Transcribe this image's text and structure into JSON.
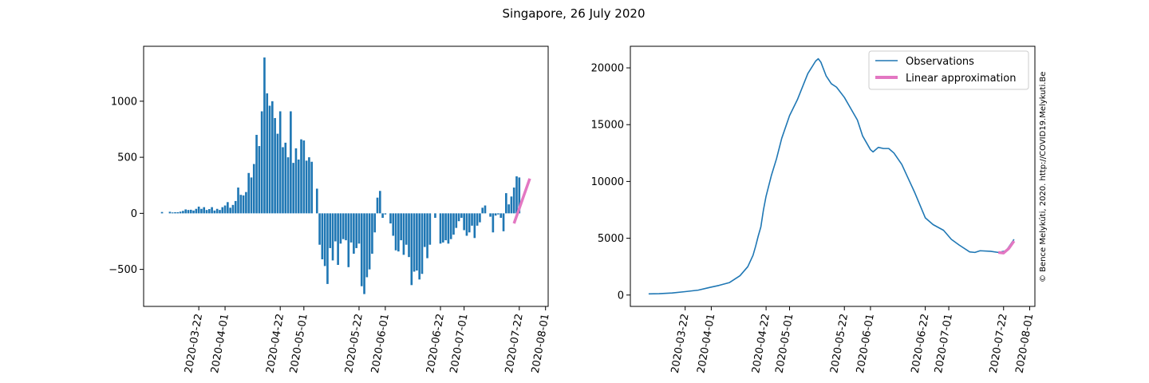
{
  "figure": {
    "title": "Singapore, 26 July 2020",
    "watermark": "© Bence Melykúti, 2020. http://COVID19.Melykuti.Be"
  },
  "colors": {
    "bar": "#1f77b4",
    "line": "#1f77b4",
    "approx": "#e377c2",
    "watermark": "#c8c8c8"
  },
  "chart_data": [
    {
      "type": "bar",
      "title": "",
      "xlabel": "",
      "ylabel": "",
      "xlim": [
        "2020-03-01",
        "2020-08-02"
      ],
      "ylim": [
        -830,
        1490
      ],
      "x_ticks": [
        "2020-03-22",
        "2020-04-01",
        "2020-04-22",
        "2020-05-01",
        "2020-05-22",
        "2020-06-01",
        "2020-06-22",
        "2020-07-01",
        "2020-07-22",
        "2020-08-01"
      ],
      "y_ticks": [
        -500,
        0,
        500,
        1000
      ],
      "y_tick_labels": [
        "−500",
        "0",
        "500",
        "1000"
      ],
      "grid": false,
      "start_date": "2020-03-08",
      "values": [
        12,
        0,
        0,
        14,
        8,
        10,
        10,
        15,
        22,
        35,
        30,
        32,
        25,
        40,
        60,
        40,
        55,
        30,
        38,
        55,
        25,
        40,
        30,
        55,
        70,
        100,
        50,
        75,
        110,
        230,
        165,
        160,
        190,
        360,
        320,
        440,
        700,
        600,
        910,
        1390,
        1070,
        960,
        1000,
        850,
        710,
        910,
        590,
        630,
        500,
        910,
        450,
        580,
        480,
        660,
        650,
        470,
        500,
        460,
        0,
        220,
        -280,
        -410,
        -470,
        -630,
        -310,
        -420,
        -250,
        -460,
        -270,
        -230,
        -240,
        -480,
        -260,
        -360,
        -310,
        -270,
        -650,
        -720,
        -570,
        -500,
        -360,
        -170,
        140,
        200,
        -40,
        -10,
        0,
        -90,
        -200,
        -330,
        -340,
        -240,
        -370,
        -280,
        -390,
        -640,
        -520,
        -510,
        -590,
        -540,
        -300,
        -400,
        -280,
        0,
        -40,
        0,
        -270,
        -260,
        -240,
        -270,
        -230,
        -190,
        -130,
        -70,
        -40,
        -150,
        -200,
        -170,
        -110,
        -220,
        -110,
        -80,
        50,
        70,
        0,
        -30,
        -170,
        -20,
        -10,
        -40,
        -160,
        180,
        80,
        150,
        230,
        330,
        320
      ],
      "approx": {
        "name": "Linear approximation",
        "x": [
          "2020-07-20",
          "2020-07-26"
        ],
        "y": [
          -90,
          310
        ]
      }
    },
    {
      "type": "line",
      "title": "",
      "xlabel": "",
      "ylabel": "",
      "xlim": [
        "2020-03-01",
        "2020-08-03"
      ],
      "ylim": [
        -1000,
        21900
      ],
      "x_ticks": [
        "2020-03-22",
        "2020-04-01",
        "2020-04-22",
        "2020-05-01",
        "2020-05-22",
        "2020-06-01",
        "2020-06-22",
        "2020-07-01",
        "2020-07-22",
        "2020-08-01"
      ],
      "y_ticks": [
        0,
        5000,
        10000,
        15000,
        20000
      ],
      "grid": false,
      "legend": {
        "placement": "top-right",
        "entries": [
          "Observations",
          "Linear approximation"
        ]
      },
      "series": [
        {
          "name": "Observations",
          "points": [
            [
              "2020-03-08",
              100
            ],
            [
              "2020-03-12",
              120
            ],
            [
              "2020-03-17",
              180
            ],
            [
              "2020-03-22",
              300
            ],
            [
              "2020-03-27",
              430
            ],
            [
              "2020-04-01",
              700
            ],
            [
              "2020-04-04",
              850
            ],
            [
              "2020-04-08",
              1100
            ],
            [
              "2020-04-12",
              1700
            ],
            [
              "2020-04-15",
              2500
            ],
            [
              "2020-04-17",
              3500
            ],
            [
              "2020-04-18",
              4300
            ],
            [
              "2020-04-19",
              5200
            ],
            [
              "2020-04-20",
              6000
            ],
            [
              "2020-04-21",
              7500
            ],
            [
              "2020-04-22",
              8700
            ],
            [
              "2020-04-24",
              10500
            ],
            [
              "2020-04-26",
              12000
            ],
            [
              "2020-04-28",
              13800
            ],
            [
              "2020-05-01",
              15800
            ],
            [
              "2020-05-04",
              17200
            ],
            [
              "2020-05-08",
              19500
            ],
            [
              "2020-05-11",
              20600
            ],
            [
              "2020-05-12",
              20800
            ],
            [
              "2020-05-13",
              20500
            ],
            [
              "2020-05-15",
              19300
            ],
            [
              "2020-05-17",
              18600
            ],
            [
              "2020-05-19",
              18300
            ],
            [
              "2020-05-22",
              17400
            ],
            [
              "2020-05-25",
              16200
            ],
            [
              "2020-05-27",
              15400
            ],
            [
              "2020-05-29",
              14000
            ],
            [
              "2020-06-01",
              12800
            ],
            [
              "2020-06-02",
              12600
            ],
            [
              "2020-06-04",
              13000
            ],
            [
              "2020-06-06",
              12900
            ],
            [
              "2020-06-08",
              12900
            ],
            [
              "2020-06-10",
              12500
            ],
            [
              "2020-06-13",
              11500
            ],
            [
              "2020-06-15",
              10500
            ],
            [
              "2020-06-18",
              9000
            ],
            [
              "2020-06-22",
              6800
            ],
            [
              "2020-06-25",
              6200
            ],
            [
              "2020-06-29",
              5700
            ],
            [
              "2020-07-02",
              4900
            ],
            [
              "2020-07-05",
              4400
            ],
            [
              "2020-07-09",
              3800
            ],
            [
              "2020-07-11",
              3750
            ],
            [
              "2020-07-13",
              3900
            ],
            [
              "2020-07-17",
              3850
            ],
            [
              "2020-07-20",
              3750
            ],
            [
              "2020-07-23",
              3900
            ],
            [
              "2020-07-26",
              4900
            ]
          ]
        },
        {
          "name": "Linear approximation",
          "points": [
            [
              "2020-07-20",
              3750
            ],
            [
              "2020-07-22",
              3700
            ],
            [
              "2020-07-24",
              4100
            ],
            [
              "2020-07-26",
              4750
            ]
          ]
        }
      ]
    }
  ]
}
